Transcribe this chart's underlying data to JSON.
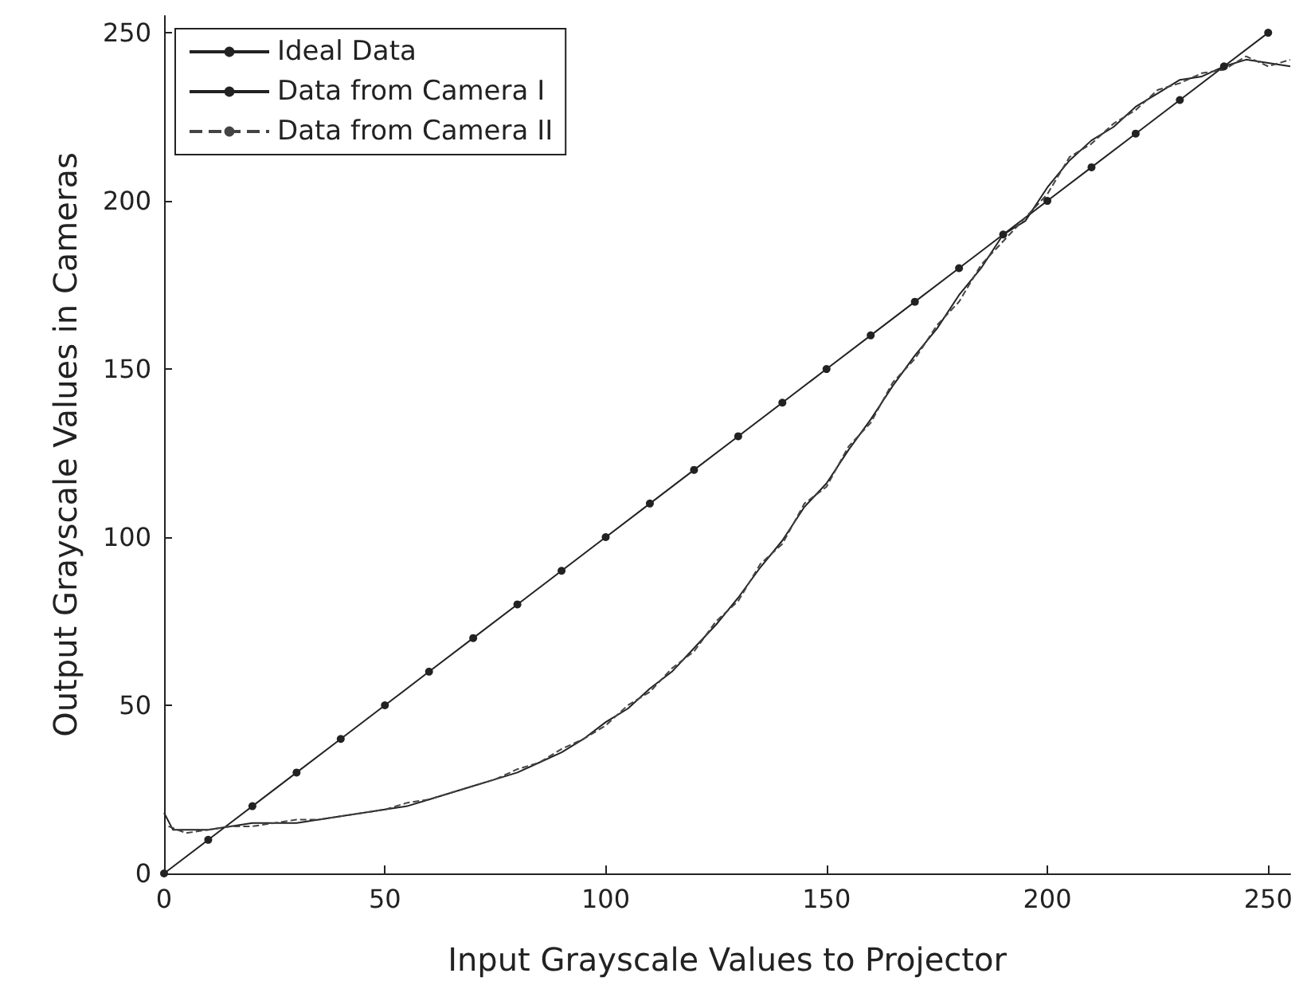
{
  "chart_data": {
    "type": "line",
    "xlabel": "Input Grayscale Values to Projector",
    "ylabel": "Output Grayscale Values in Cameras",
    "xlim": [
      0,
      255
    ],
    "ylim": [
      0,
      255
    ],
    "xticks": [
      0,
      50,
      100,
      150,
      200,
      250
    ],
    "yticks": [
      0,
      50,
      100,
      150,
      200,
      250
    ],
    "grid": false,
    "legend": "top left",
    "series": [
      {
        "name": "Ideal Data",
        "color": "#222222",
        "marker": "circle",
        "line_style": "solid",
        "x": [
          0,
          10,
          20,
          30,
          40,
          50,
          60,
          70,
          80,
          90,
          100,
          110,
          120,
          130,
          140,
          150,
          160,
          170,
          180,
          190,
          200,
          210,
          220,
          230,
          240,
          250
        ],
        "values": [
          0,
          10,
          20,
          30,
          40,
          50,
          60,
          70,
          80,
          90,
          100,
          110,
          120,
          130,
          140,
          150,
          160,
          170,
          180,
          190,
          200,
          210,
          220,
          230,
          240,
          250
        ]
      },
      {
        "name": "Data from Camera I",
        "color": "#222222",
        "marker": "none",
        "line_style": "solid",
        "x": [
          0,
          2,
          5,
          10,
          15,
          20,
          25,
          30,
          35,
          40,
          45,
          50,
          55,
          60,
          65,
          70,
          75,
          80,
          85,
          90,
          95,
          100,
          105,
          110,
          115,
          120,
          125,
          130,
          135,
          140,
          145,
          150,
          155,
          160,
          165,
          170,
          175,
          180,
          185,
          190,
          195,
          200,
          205,
          210,
          215,
          220,
          225,
          230,
          235,
          240,
          245,
          250,
          255
        ],
        "values": [
          18,
          13,
          13,
          13,
          14,
          15,
          15,
          15,
          16,
          17,
          18,
          19,
          20,
          22,
          24,
          26,
          28,
          30,
          33,
          36,
          40,
          45,
          49,
          55,
          60,
          67,
          74,
          82,
          91,
          99,
          109,
          116,
          126,
          135,
          145,
          154,
          162,
          172,
          180,
          190,
          194,
          204,
          212,
          218,
          222,
          228,
          232,
          236,
          237,
          240,
          242,
          241,
          240
        ]
      },
      {
        "name": "Data from Camera II",
        "color": "#444444",
        "marker": "none",
        "line_style": "dashed",
        "x": [
          1,
          5,
          10,
          15,
          20,
          25,
          30,
          35,
          40,
          45,
          50,
          55,
          60,
          65,
          70,
          75,
          80,
          85,
          90,
          95,
          100,
          105,
          110,
          115,
          120,
          125,
          130,
          135,
          140,
          145,
          150,
          155,
          160,
          165,
          170,
          175,
          180,
          185,
          190,
          195,
          200,
          205,
          210,
          215,
          220,
          225,
          230,
          235,
          240,
          245,
          250,
          255
        ],
        "values": [
          14,
          12,
          13,
          14,
          14,
          15,
          16,
          16,
          17,
          18,
          19,
          21,
          22,
          24,
          26,
          28,
          31,
          33,
          37,
          40,
          44,
          50,
          54,
          61,
          66,
          75,
          81,
          92,
          98,
          110,
          115,
          127,
          134,
          146,
          153,
          163,
          170,
          181,
          188,
          195,
          202,
          213,
          217,
          223,
          227,
          233,
          235,
          238,
          239,
          243,
          240,
          242
        ]
      }
    ]
  }
}
